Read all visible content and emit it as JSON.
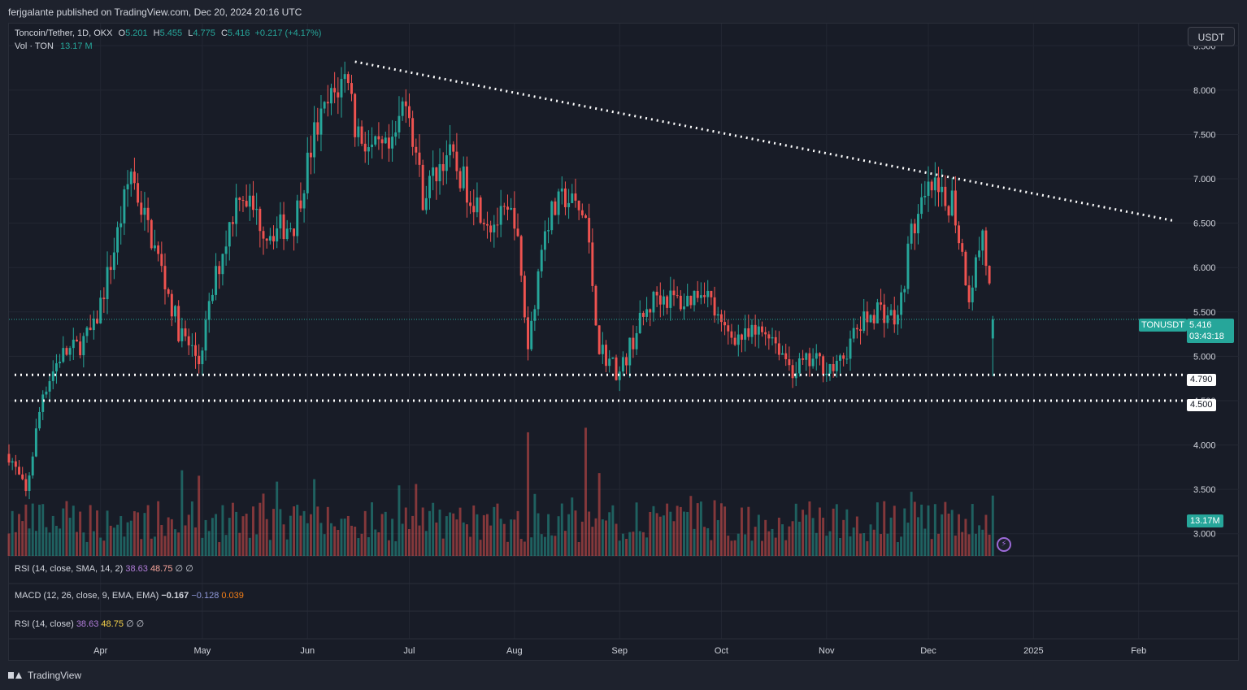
{
  "header": {
    "published": "ferjgalante published on TradingView.com, Dec 20, 2024 20:16 UTC"
  },
  "legend": {
    "symbol": "Toncoin/Tether, 1D, OKX",
    "o_label": "O",
    "o_value": "5.201",
    "h_label": "H",
    "h_value": "5.455",
    "l_label": "L",
    "l_value": "4.775",
    "c_label": "C",
    "c_value": "5.416",
    "change": "+0.217 (+4.17%)",
    "vol_label": "Vol · TON",
    "vol_value": "13.17 M"
  },
  "toolbar": {
    "currency": "USDT"
  },
  "price_scale": {
    "last_symbol": "TONUSDT",
    "last_price": "5.416",
    "countdown": "03:43:18",
    "volume_tag": "13.17M",
    "level_1": "4.790",
    "level_2": "4.500"
  },
  "indicators": {
    "rsi1": {
      "label": "RSI (14, close, SMA, 14, 2)",
      "v1": "38.63",
      "v2": "48.75",
      "v3": "∅",
      "v4": "∅"
    },
    "macd": {
      "label": "MACD (12, 26, close, 9, EMA, EMA)",
      "v1": "−0.167",
      "v2": "−0.128",
      "v3": "0.039"
    },
    "rsi2": {
      "label": "RSI (14, close)",
      "v1": "38.63",
      "v2": "48.75",
      "v3": "∅",
      "v4": "∅"
    }
  },
  "footer": {
    "brand": "TradingView"
  },
  "colors": {
    "up": "#26a69a",
    "down": "#ef5350",
    "background": "#181c27",
    "grid": "#232733"
  },
  "chart_data": {
    "type": "candlestick",
    "title": "",
    "y_ticks": [
      "3.000",
      "3.500",
      "4.000",
      "4.500",
      "5.000",
      "5.500",
      "6.000",
      "6.500",
      "7.000",
      "7.500",
      "8.000",
      "8.500"
    ],
    "ylim": [
      2.75,
      8.75
    ],
    "x_ticks": [
      {
        "label": "Apr",
        "date": "2024-04-01"
      },
      {
        "label": "May",
        "date": "2024-05-01"
      },
      {
        "label": "Jun",
        "date": "2024-06-01"
      },
      {
        "label": "Jul",
        "date": "2024-07-01"
      },
      {
        "label": "Aug",
        "date": "2024-08-01"
      },
      {
        "label": "Sep",
        "date": "2024-09-01"
      },
      {
        "label": "Oct",
        "date": "2024-10-01"
      },
      {
        "label": "Nov",
        "date": "2024-11-01"
      },
      {
        "label": "Dec",
        "date": "2024-12-01"
      },
      {
        "label": "2025",
        "date": "2025-01-01"
      },
      {
        "label": "Feb",
        "date": "2025-02-01"
      }
    ],
    "xlim": [
      "2024-03-05",
      "2025-02-14"
    ],
    "close_series": {
      "dates": [
        "2024-03-05",
        "2024-03-10",
        "2024-03-15",
        "2024-03-20",
        "2024-03-25",
        "2024-03-30",
        "2024-04-05",
        "2024-04-10",
        "2024-04-12",
        "2024-04-18",
        "2024-04-24",
        "2024-04-30",
        "2024-05-05",
        "2024-05-12",
        "2024-05-20",
        "2024-05-28",
        "2024-06-03",
        "2024-06-08",
        "2024-06-13",
        "2024-06-15",
        "2024-06-20",
        "2024-06-26",
        "2024-06-30",
        "2024-07-05",
        "2024-07-12",
        "2024-07-18",
        "2024-07-25",
        "2024-08-01",
        "2024-08-05",
        "2024-08-10",
        "2024-08-16",
        "2024-08-22",
        "2024-08-26",
        "2024-09-01",
        "2024-09-06",
        "2024-09-12",
        "2024-09-20",
        "2024-09-26",
        "2024-10-01",
        "2024-10-08",
        "2024-10-15",
        "2024-10-22",
        "2024-10-28",
        "2024-11-04",
        "2024-11-10",
        "2024-11-16",
        "2024-11-22",
        "2024-11-26",
        "2024-12-02",
        "2024-12-06",
        "2024-12-08",
        "2024-12-13",
        "2024-12-17",
        "2024-12-20"
      ],
      "values": [
        3.9,
        3.45,
        4.6,
        5.0,
        5.1,
        5.3,
        6.2,
        7.1,
        6.8,
        6.1,
        5.3,
        4.95,
        5.9,
        6.9,
        6.4,
        6.5,
        7.5,
        7.9,
        8.2,
        7.6,
        7.3,
        7.3,
        8.0,
        6.8,
        7.3,
        6.9,
        6.5,
        6.6,
        5.1,
        6.5,
        6.8,
        6.55,
        5.1,
        4.8,
        5.3,
        5.7,
        5.6,
        5.8,
        5.3,
        5.2,
        5.3,
        4.85,
        4.95,
        4.85,
        5.3,
        5.55,
        5.4,
        6.4,
        6.9,
        6.7,
        6.8,
        5.7,
        6.4,
        5.416
      ]
    },
    "volume_series": {
      "dates": [
        "2024-08-05",
        "2024-08-22",
        "2024-11-26",
        "2024-12-20"
      ],
      "values_millions": [
        27.0,
        28.0,
        14.0,
        13.17
      ]
    },
    "horizontal_levels": [
      4.79,
      4.5
    ],
    "trendline": {
      "from": {
        "date": "2024-06-15",
        "value": 8.32
      },
      "to": {
        "date": "2025-02-11",
        "value": 6.53
      }
    },
    "last": {
      "value": 5.416
    }
  }
}
